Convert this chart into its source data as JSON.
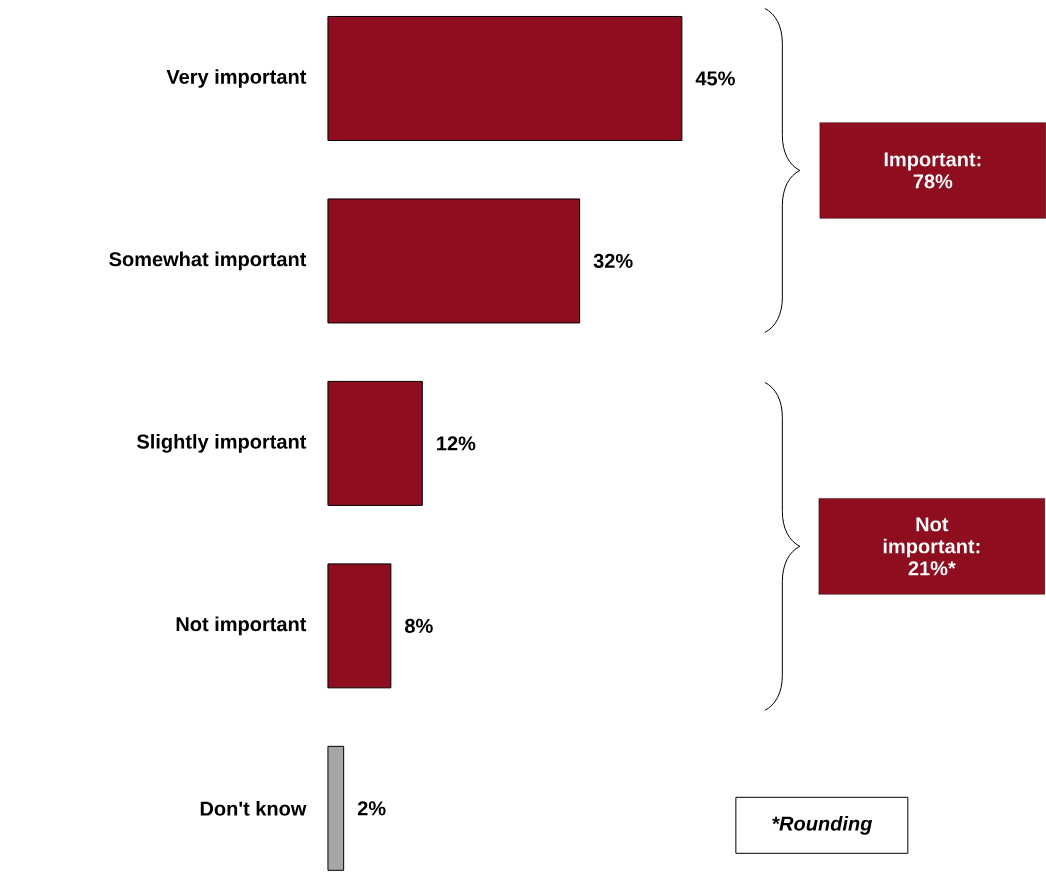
{
  "chart_data": {
    "type": "bar",
    "orientation": "horizontal",
    "categories": [
      "Very important",
      "Somewhat important",
      "Slightly important",
      "Not important",
      "Don't know"
    ],
    "values": [
      45,
      32,
      12,
      8,
      2
    ],
    "value_labels": [
      "45%",
      "32%",
      "12%",
      "8%",
      "2%"
    ],
    "colors": [
      "#8e0e1f",
      "#8e0e1f",
      "#8e0e1f",
      "#8e0e1f",
      "#a6a6a6"
    ],
    "annotations": [
      "Important: 78%",
      "Not important: 21%*",
      "*Rounding"
    ]
  }
}
